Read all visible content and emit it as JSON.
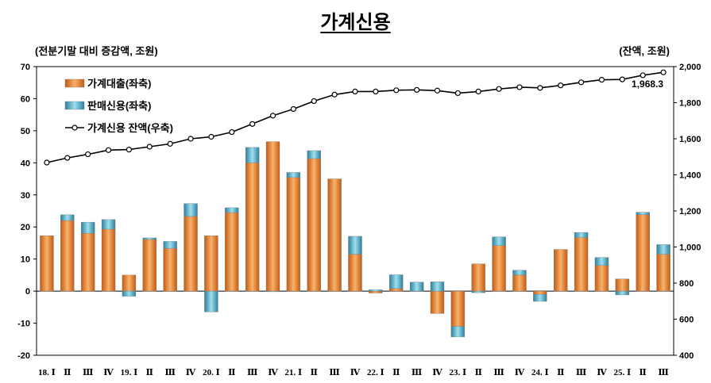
{
  "chart_data": {
    "type": "bar",
    "title": "가계신용",
    "left_unit": "(전분기말 대비 증감액, 조원)",
    "right_unit": "(잔액, 조원)",
    "categories": [
      "18. Ⅰ",
      "Ⅱ",
      "Ⅲ",
      "Ⅳ",
      "19. Ⅰ",
      "Ⅱ",
      "Ⅲ",
      "Ⅳ",
      "20. Ⅰ",
      "Ⅱ",
      "Ⅲ",
      "Ⅳ",
      "21. Ⅰ",
      "Ⅱ",
      "Ⅲ",
      "Ⅳ",
      "22. Ⅰ",
      "Ⅱ",
      "Ⅲ",
      "Ⅳ",
      "23. Ⅰ",
      "Ⅱ",
      "Ⅲ",
      "Ⅳ",
      "24. Ⅰ",
      "Ⅱ",
      "Ⅲ",
      "Ⅳ",
      "25. Ⅰ",
      "Ⅱ",
      "Ⅲ"
    ],
    "stacked": true,
    "series": [
      {
        "name": "가계대출(좌축)",
        "axis": "left",
        "color": "#ED7D31",
        "values": [
          17.3,
          22.0,
          18.0,
          19.3,
          5.0,
          16.1,
          13.3,
          23.3,
          17.3,
          24.5,
          40.0,
          46.6,
          35.4,
          41.3,
          35.0,
          11.5,
          -0.6,
          0.8,
          -0.1,
          -7.0,
          -11.0,
          8.5,
          14.2,
          5.0,
          -1.0,
          13.0,
          16.7,
          8.0,
          3.8,
          23.8,
          11.5
        ]
      },
      {
        "name": "판매신용(좌축)",
        "axis": "left",
        "color": "#4BACC6",
        "values": [
          0.0,
          1.8,
          3.5,
          3.0,
          -1.6,
          0.5,
          2.2,
          4.0,
          -6.5,
          1.5,
          4.8,
          -0.2,
          1.6,
          2.5,
          0.0,
          5.6,
          0.4,
          4.3,
          2.8,
          2.9,
          -3.3,
          -0.5,
          2.7,
          1.5,
          -2.2,
          0.0,
          1.6,
          2.5,
          -1.2,
          0.8,
          3.0
        ]
      },
      {
        "name": "가계신용 잔액(우축)",
        "axis": "right",
        "type": "line",
        "color": "#000000",
        "values": [
          1468,
          1494,
          1514,
          1537,
          1540,
          1556,
          1572,
          1600,
          1611,
          1637,
          1682,
          1728,
          1765,
          1809,
          1845,
          1862,
          1862,
          1869,
          1871,
          1867,
          1853,
          1862,
          1876,
          1886,
          1882,
          1896,
          1913,
          1927,
          1929,
          1952,
          1968.3
        ]
      }
    ],
    "left_axis": {
      "min": -20,
      "max": 70,
      "ticks": [
        -20,
        -10,
        0,
        10,
        20,
        30,
        40,
        50,
        60,
        70
      ]
    },
    "right_axis": {
      "min": 400,
      "max": 2000,
      "ticks": [
        "400",
        "600",
        "800",
        "1,000",
        "1,200",
        "1,400",
        "1,600",
        "1,800",
        "2,000"
      ]
    },
    "annotation": "1,968.3",
    "legend_position": "top-left"
  }
}
